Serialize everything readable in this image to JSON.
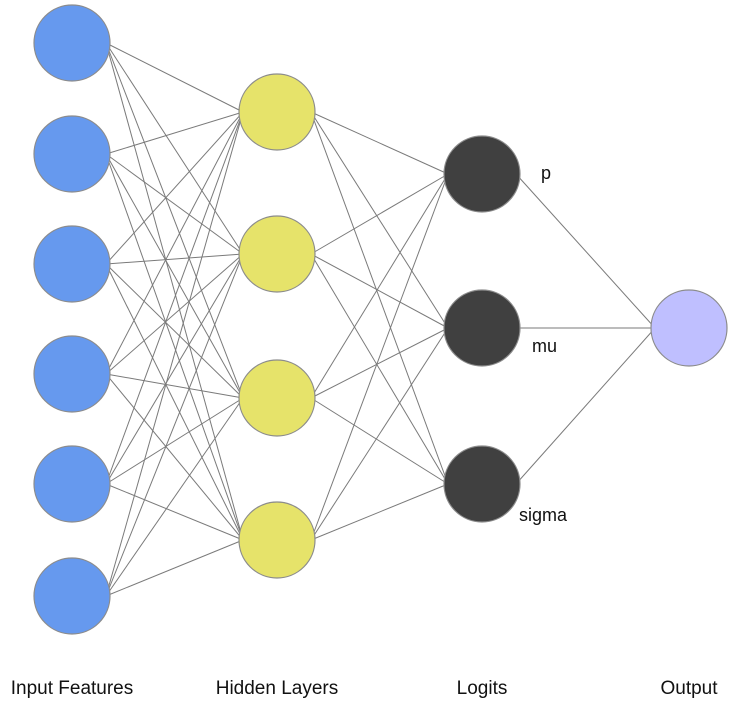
{
  "colors": {
    "input": "#6699ee",
    "hidden": "#e6e36a",
    "logit": "#404040",
    "output": "#bfbfff",
    "edge": "#7a7a7a",
    "node_stroke": "#8c8c8c"
  },
  "layers": [
    {
      "id": "input",
      "label": "Input Features",
      "node_count": 6,
      "node_labels": []
    },
    {
      "id": "hidden",
      "label": "Hidden Layers",
      "node_count": 4,
      "node_labels": []
    },
    {
      "id": "logits",
      "label": "Logits",
      "node_count": 3,
      "node_labels": [
        "p",
        "mu",
        "sigma"
      ]
    },
    {
      "id": "output",
      "label": "Output",
      "node_count": 1,
      "node_labels": []
    }
  ],
  "connections": "fully-connected"
}
